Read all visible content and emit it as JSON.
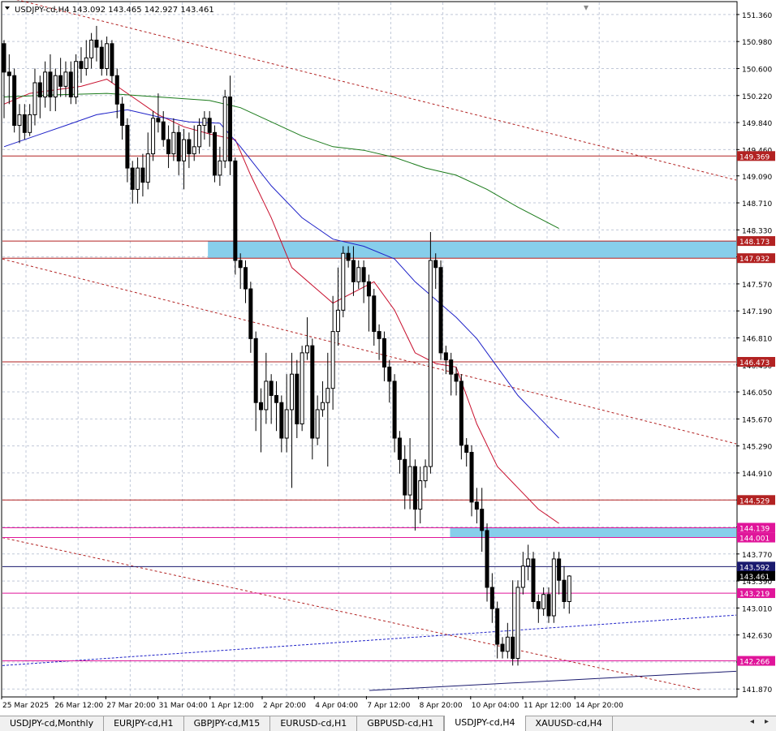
{
  "window": {
    "symbol_info": "USDJPY-cd,H4  143.092 143.465 142.927 143.461",
    "menu_glyph": "▾"
  },
  "colors": {
    "up_body": "#ffffff",
    "down_body": "#000000",
    "candle_outline": "#000000",
    "ma_fast": "#c8102e",
    "ma_mid": "#1f22c8",
    "ma_slow": "#1a7a1a",
    "level_line": "#b22222",
    "pink_line": "#e0159a",
    "zone_fill": "#87ceeb",
    "grid": "#c0c8d8"
  },
  "chart_data": {
    "type": "candlestick",
    "symbol": "USDJPY-cd",
    "timeframe": "H4",
    "ylim": [
      141.77,
      151.53
    ],
    "y_ticks": [
      "151.360",
      "150.980",
      "150.600",
      "150.220",
      "149.840",
      "149.460",
      "149.090",
      "148.710",
      "148.330",
      "147.950",
      "147.570",
      "147.190",
      "146.810",
      "146.430",
      "146.050",
      "145.670",
      "145.290",
      "144.910",
      "144.530",
      "144.150",
      "143.770",
      "143.390",
      "143.010",
      "142.630",
      "142.250",
      "141.870"
    ],
    "x_labels": [
      "25 Mar 2025",
      "26 Mar 12:00",
      "27 Mar 20:00",
      "31 Mar 04:00",
      "1 Apr 12:00",
      "2 Apr 20:00",
      "4 Apr 04:00",
      "7 Apr 12:00",
      "8 Apr 20:00",
      "10 Apr 04:00",
      "11 Apr 12:00",
      "14 Apr 20:00"
    ],
    "candles": [
      [
        150.95,
        150.55,
        151.0,
        149.9
      ],
      [
        150.55,
        150.5,
        150.8,
        150.1
      ],
      [
        150.5,
        149.8,
        150.6,
        149.7
      ],
      [
        149.8,
        149.95,
        150.1,
        149.55
      ],
      [
        149.95,
        149.7,
        150.1,
        149.6
      ],
      [
        149.7,
        149.95,
        150.1,
        149.65
      ],
      [
        149.95,
        150.4,
        150.6,
        149.8
      ],
      [
        150.4,
        150.2,
        150.5,
        149.9
      ],
      [
        150.2,
        150.55,
        150.7,
        150.05
      ],
      [
        150.55,
        150.2,
        150.8,
        150.0
      ],
      [
        150.2,
        150.5,
        150.6,
        150.0
      ],
      [
        150.5,
        150.35,
        150.75,
        150.2
      ],
      [
        150.35,
        150.55,
        150.7,
        150.2
      ],
      [
        150.55,
        150.2,
        150.7,
        150.1
      ],
      [
        150.2,
        150.7,
        150.8,
        150.1
      ],
      [
        150.7,
        150.6,
        150.9,
        150.4
      ],
      [
        150.6,
        150.75,
        151.0,
        150.5
      ],
      [
        150.75,
        151.0,
        151.1,
        150.6
      ],
      [
        151.0,
        150.9,
        151.2,
        150.7
      ],
      [
        150.9,
        150.6,
        151.0,
        150.5
      ],
      [
        150.6,
        150.95,
        151.05,
        150.5
      ],
      [
        150.95,
        150.5,
        151.0,
        150.4
      ],
      [
        150.5,
        150.1,
        150.6,
        149.9
      ],
      [
        150.1,
        149.8,
        150.2,
        149.6
      ],
      [
        149.8,
        149.2,
        149.9,
        149.0
      ],
      [
        149.2,
        148.9,
        149.3,
        148.7
      ],
      [
        148.9,
        149.2,
        149.35,
        148.7
      ],
      [
        149.2,
        149.0,
        149.4,
        148.8
      ],
      [
        149.0,
        149.4,
        149.7,
        148.9
      ],
      [
        149.4,
        149.9,
        150.0,
        149.3
      ],
      [
        149.9,
        149.85,
        150.25,
        149.7
      ],
      [
        149.85,
        149.6,
        150.0,
        149.5
      ],
      [
        149.6,
        149.4,
        149.8,
        149.2
      ],
      [
        149.4,
        149.7,
        149.9,
        149.3
      ],
      [
        149.7,
        149.3,
        149.8,
        149.1
      ],
      [
        149.3,
        149.6,
        149.75,
        148.9
      ],
      [
        149.6,
        149.4,
        149.7,
        149.2
      ],
      [
        149.4,
        149.5,
        149.8,
        149.3
      ],
      [
        149.5,
        149.8,
        149.9,
        149.4
      ],
      [
        149.8,
        149.9,
        150.0,
        149.6
      ],
      [
        149.9,
        149.7,
        150.0,
        149.5
      ],
      [
        149.7,
        149.1,
        149.8,
        149.0
      ],
      [
        149.1,
        149.3,
        149.5,
        148.95
      ],
      [
        149.3,
        150.2,
        150.3,
        149.2
      ],
      [
        150.2,
        149.3,
        150.5,
        149.1
      ],
      [
        149.3,
        147.9,
        149.35,
        147.7
      ],
      [
        147.9,
        147.8,
        148.0,
        147.5
      ],
      [
        147.8,
        147.5,
        147.9,
        147.3
      ],
      [
        147.5,
        146.8,
        147.6,
        146.6
      ],
      [
        146.8,
        145.9,
        146.9,
        145.5
      ],
      [
        145.9,
        145.8,
        146.1,
        145.2
      ],
      [
        145.8,
        146.2,
        146.6,
        145.6
      ],
      [
        146.2,
        146.0,
        146.3,
        145.6
      ],
      [
        146.0,
        145.9,
        146.2,
        145.5
      ],
      [
        145.9,
        145.4,
        146.0,
        145.2
      ],
      [
        145.4,
        145.8,
        146.3,
        145.2
      ],
      [
        145.8,
        146.3,
        146.6,
        144.7
      ],
      [
        146.3,
        145.6,
        146.5,
        145.4
      ],
      [
        145.6,
        146.6,
        146.7,
        145.5
      ],
      [
        146.6,
        146.7,
        147.1,
        146.5
      ],
      [
        146.7,
        145.4,
        146.8,
        145.1
      ],
      [
        145.4,
        145.8,
        146.0,
        145.3
      ],
      [
        145.8,
        145.9,
        146.2,
        145.7
      ],
      [
        145.9,
        146.1,
        146.6,
        145.0
      ],
      [
        146.1,
        146.9,
        147.4,
        145.8
      ],
      [
        146.9,
        147.2,
        147.8,
        146.7
      ],
      [
        147.2,
        148.0,
        148.1,
        147.1
      ],
      [
        148.0,
        147.9,
        148.1,
        147.8
      ],
      [
        147.9,
        147.6,
        148.1,
        147.4
      ],
      [
        147.6,
        147.8,
        147.9,
        147.5
      ],
      [
        147.8,
        147.6,
        147.9,
        147.3
      ],
      [
        147.6,
        147.4,
        147.7,
        146.9
      ],
      [
        147.4,
        146.9,
        147.5,
        146.7
      ],
      [
        146.9,
        146.8,
        147.0,
        146.5
      ],
      [
        146.8,
        146.4,
        146.9,
        146.2
      ],
      [
        146.4,
        146.2,
        146.5,
        145.9
      ],
      [
        146.2,
        145.4,
        146.3,
        145.2
      ],
      [
        145.4,
        145.1,
        145.5,
        144.9
      ],
      [
        145.1,
        144.6,
        145.3,
        144.4
      ],
      [
        144.6,
        145.0,
        145.4,
        144.4
      ],
      [
        145.0,
        144.4,
        145.1,
        144.1
      ],
      [
        144.4,
        144.8,
        145.0,
        144.2
      ],
      [
        144.8,
        145.0,
        145.1,
        144.7
      ],
      [
        145.0,
        147.9,
        148.3,
        144.9
      ],
      [
        147.9,
        147.8,
        148.0,
        147.5
      ],
      [
        147.8,
        146.6,
        147.9,
        146.5
      ],
      [
        146.6,
        146.5,
        146.7,
        146.3
      ],
      [
        146.5,
        146.3,
        146.6,
        146.0
      ],
      [
        146.3,
        146.2,
        146.4,
        146.0
      ],
      [
        146.2,
        145.3,
        146.3,
        145.1
      ],
      [
        145.3,
        145.2,
        145.4,
        145.0
      ],
      [
        145.2,
        144.5,
        145.3,
        144.3
      ],
      [
        144.5,
        144.4,
        144.7,
        144.2
      ],
      [
        144.4,
        144.1,
        144.7,
        143.8
      ],
      [
        144.1,
        143.3,
        144.2,
        143.1
      ],
      [
        143.3,
        143.0,
        143.5,
        142.8
      ],
      [
        143.0,
        142.5,
        143.1,
        142.3
      ],
      [
        142.5,
        142.4,
        142.6,
        142.3
      ],
      [
        142.4,
        142.6,
        142.8,
        142.3
      ],
      [
        142.6,
        142.3,
        143.4,
        142.2
      ],
      [
        142.3,
        143.3,
        143.4,
        142.2
      ],
      [
        143.3,
        143.6,
        143.8,
        143.2
      ],
      [
        143.6,
        143.7,
        143.9,
        143.4
      ],
      [
        143.7,
        143.1,
        143.8,
        143.0
      ],
      [
        143.1,
        143.0,
        143.2,
        142.8
      ],
      [
        143.0,
        143.2,
        143.3,
        142.9
      ],
      [
        143.2,
        142.9,
        143.3,
        142.8
      ],
      [
        142.9,
        143.7,
        143.8,
        142.8
      ],
      [
        143.7,
        143.4,
        143.8,
        143.2
      ],
      [
        143.4,
        143.1,
        143.6,
        143.0
      ],
      [
        143.1,
        143.46,
        143.47,
        142.93
      ]
    ],
    "ma_fast": [
      [
        0,
        150.1
      ],
      [
        5,
        150.25
      ],
      [
        10,
        150.3
      ],
      [
        15,
        150.35
      ],
      [
        20,
        150.45
      ],
      [
        25,
        150.2
      ],
      [
        30,
        149.95
      ],
      [
        35,
        149.78
      ],
      [
        40,
        149.68
      ],
      [
        45,
        149.6
      ],
      [
        48,
        149.1
      ],
      [
        52,
        148.5
      ],
      [
        56,
        147.8
      ],
      [
        60,
        147.55
      ],
      [
        64,
        147.3
      ],
      [
        68,
        147.45
      ],
      [
        72,
        147.6
      ],
      [
        76,
        147.2
      ],
      [
        80,
        146.6
      ],
      [
        84,
        146.45
      ],
      [
        88,
        146.4
      ],
      [
        92,
        145.6
      ],
      [
        96,
        145.0
      ],
      [
        100,
        144.7
      ],
      [
        104,
        144.4
      ],
      [
        108,
        144.2
      ]
    ],
    "ma_mid": [
      [
        0,
        149.5
      ],
      [
        6,
        149.65
      ],
      [
        12,
        149.8
      ],
      [
        18,
        149.95
      ],
      [
        24,
        150.02
      ],
      [
        30,
        149.92
      ],
      [
        36,
        149.85
      ],
      [
        42,
        149.83
      ],
      [
        46,
        149.5
      ],
      [
        52,
        148.95
      ],
      [
        58,
        148.5
      ],
      [
        64,
        148.2
      ],
      [
        70,
        148.1
      ],
      [
        76,
        147.92
      ],
      [
        80,
        147.6
      ],
      [
        84,
        147.35
      ],
      [
        88,
        147.1
      ],
      [
        92,
        146.8
      ],
      [
        96,
        146.4
      ],
      [
        100,
        146.0
      ],
      [
        104,
        145.7
      ],
      [
        108,
        145.4
      ]
    ],
    "ma_slow": [
      [
        0,
        150.2
      ],
      [
        10,
        150.23
      ],
      [
        20,
        150.25
      ],
      [
        30,
        150.2
      ],
      [
        40,
        150.15
      ],
      [
        46,
        150.05
      ],
      [
        52,
        149.85
      ],
      [
        58,
        149.65
      ],
      [
        64,
        149.5
      ],
      [
        70,
        149.45
      ],
      [
        76,
        149.35
      ],
      [
        82,
        149.2
      ],
      [
        88,
        149.1
      ],
      [
        94,
        148.9
      ],
      [
        100,
        148.65
      ],
      [
        108,
        148.35
      ]
    ],
    "zones": [
      {
        "from": 0.28,
        "to": 1.0,
        "low": 147.932,
        "high": 148.173
      },
      {
        "from": 0.61,
        "to": 1.0,
        "low": 144.001,
        "high": 144.139
      }
    ],
    "price_levels": [
      {
        "value": 149.369,
        "label": "149.369",
        "color": "#b22222"
      },
      {
        "value": 148.173,
        "label": "148.173",
        "color": "#b22222"
      },
      {
        "value": 147.932,
        "label": "147.932",
        "color": "#b22222"
      },
      {
        "value": 146.473,
        "label": "146.473",
        "color": "#b22222"
      },
      {
        "value": 144.529,
        "label": "144.529",
        "color": "#b22222"
      },
      {
        "value": 144.139,
        "label": "144.139",
        "color": "#e0159a"
      },
      {
        "value": 144.001,
        "label": "144.001",
        "color": "#e0159a"
      },
      {
        "value": 143.592,
        "label": "143.592",
        "color": "#1a1a6e"
      },
      {
        "value": 143.219,
        "label": "143.219",
        "color": "#e0159a"
      },
      {
        "value": 142.266,
        "label": "142.266",
        "color": "#e0159a"
      }
    ],
    "current_price": {
      "value": 143.461,
      "label": "143.461"
    },
    "trendlines": [
      {
        "x1": 0.0,
        "y1": 151.62,
        "x2": 1.0,
        "y2": 149.03,
        "color": "#b22222",
        "dash": "3,3"
      },
      {
        "x1": 0.0,
        "y1": 147.92,
        "x2": 1.0,
        "y2": 145.32,
        "color": "#b22222",
        "dash": "3,3"
      },
      {
        "x1": 0.0,
        "y1": 144.0,
        "x2": 0.95,
        "y2": 141.86,
        "color": "#b22222",
        "dash": "3,3"
      },
      {
        "x1": 0.0,
        "y1": 142.2,
        "x2": 1.0,
        "y2": 142.91,
        "color": "#1f22c8",
        "dash": "3,2"
      },
      {
        "x1": 0.5,
        "y1": 141.85,
        "x2": 1.0,
        "y2": 142.12,
        "color": "#1a1a6e",
        "dash": ""
      }
    ]
  },
  "tabs": [
    {
      "label": "USDJPY-cd,Monthly",
      "active": false
    },
    {
      "label": "EURJPY-cd,H1",
      "active": false
    },
    {
      "label": "GBPJPY-cd,M15",
      "active": false
    },
    {
      "label": "EURUSD-cd,H1",
      "active": false
    },
    {
      "label": "GBPUSD-cd,H1",
      "active": false
    },
    {
      "label": "USDJPY-cd,H4",
      "active": true
    },
    {
      "label": "XAUUSD-cd,H4",
      "active": false
    }
  ],
  "tab_nav": {
    "left": "◂",
    "right": "▸"
  }
}
